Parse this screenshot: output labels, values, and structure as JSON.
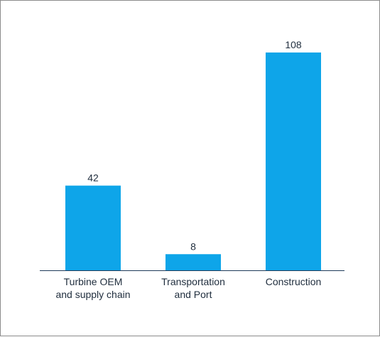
{
  "chart_data": {
    "type": "bar",
    "categories": [
      [
        "Turbine OEM",
        "and supply chain"
      ],
      [
        "Transportation",
        "and Port"
      ],
      [
        "Construction"
      ]
    ],
    "values": [
      42,
      8,
      108
    ],
    "value_labels": [
      "42",
      "8",
      "108"
    ],
    "title": "",
    "xlabel": "",
    "ylabel": "",
    "ylim": [
      0,
      108
    ],
    "grid": false,
    "bar_color": "#0ea5e9",
    "axis_color": "#1f3b5a"
  }
}
